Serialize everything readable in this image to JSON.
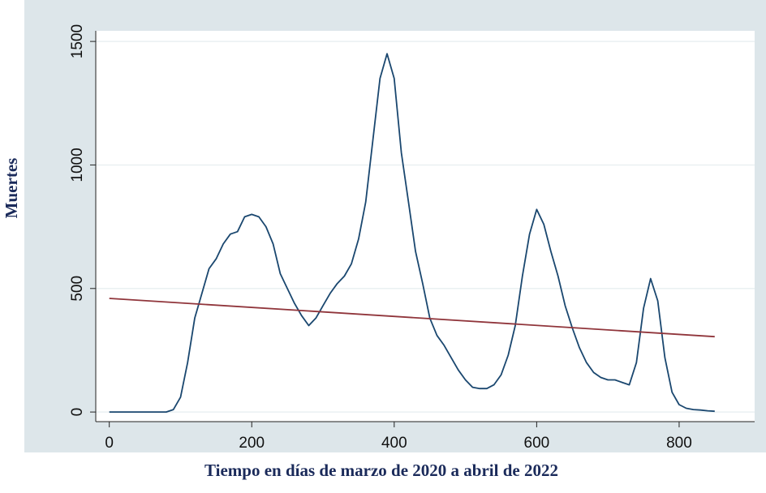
{
  "chart_data": {
    "type": "line",
    "x_label": "Tiempo en días de marzo de 2020 a abril de 2022",
    "y_label": "Muertes",
    "series": [
      {
        "color": "#1a476f",
        "x": [
          0,
          10,
          20,
          30,
          40,
          50,
          60,
          70,
          80,
          90,
          100,
          110,
          120,
          130,
          140,
          150,
          160,
          170,
          180,
          190,
          200,
          210,
          220,
          230,
          240,
          250,
          260,
          270,
          280,
          290,
          300,
          310,
          320,
          330,
          340,
          350,
          360,
          370,
          380,
          390,
          400,
          410,
          420,
          430,
          440,
          450,
          460,
          470,
          480,
          490,
          500,
          510,
          520,
          530,
          540,
          550,
          560,
          570,
          580,
          590,
          600,
          610,
          620,
          630,
          640,
          650,
          660,
          670,
          680,
          690,
          700,
          710,
          720,
          730,
          740,
          750,
          760,
          770,
          780,
          790,
          800,
          810,
          820,
          830,
          840,
          850
        ],
        "values": [
          0,
          0,
          0,
          0,
          0,
          0,
          0,
          0,
          0,
          10,
          60,
          200,
          380,
          480,
          580,
          620,
          680,
          720,
          730,
          790,
          800,
          790,
          750,
          680,
          560,
          500,
          440,
          390,
          350,
          380,
          430,
          480,
          520,
          550,
          600,
          700,
          850,
          1100,
          1350,
          1450,
          1350,
          1050,
          850,
          650,
          520,
          380,
          310,
          270,
          220,
          170,
          130,
          100,
          95,
          95,
          110,
          150,
          230,
          350,
          550,
          720,
          820,
          760,
          650,
          550,
          430,
          340,
          260,
          200,
          160,
          140,
          130,
          130,
          120,
          110,
          200,
          420,
          540,
          450,
          220,
          80,
          30,
          15,
          10,
          8,
          5,
          3
        ]
      },
      {
        "color": "#90353b",
        "x": [
          0,
          850
        ],
        "values": [
          460,
          305
        ]
      }
    ],
    "xlim": [
      -19,
      906
    ],
    "ylim": [
      -39,
      1543
    ],
    "xticks": [
      0,
      200,
      400,
      600,
      800
    ],
    "yticks": [
      0,
      500,
      1000,
      1500
    ],
    "grid": true
  }
}
